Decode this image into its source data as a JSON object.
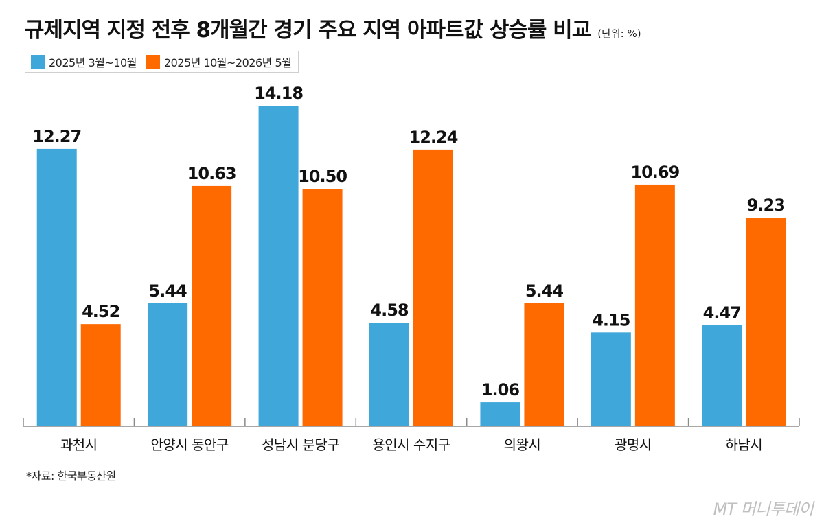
{
  "header": {
    "title": "규제지역 지정 전후 8개월간 경기 주요 지역 아파트값 상승률 비교",
    "unit": "(단위: %)"
  },
  "source": "*자료: 한국부동산원",
  "watermark": "MT 머니투데이",
  "colors": {
    "series1": "#3fa7d9",
    "series2": "#ff6a00",
    "axis": "#8a8a8a"
  },
  "chart_data": {
    "type": "bar",
    "title": "규제지역 지정 전후 8개월간 경기 주요 지역 아파트값 상승률 비교",
    "unit": "(단위: %)",
    "categories": [
      "과천시",
      "안양시 동안구",
      "성남시 분당구",
      "용인시 수지구",
      "의왕시",
      "광명시",
      "하남시"
    ],
    "series": [
      {
        "name": "2025년 3월~10월",
        "values": [
          12.27,
          5.44,
          14.18,
          4.58,
          1.06,
          4.15,
          4.47
        ]
      },
      {
        "name": "2025년 10월~2026년 5월",
        "values": [
          4.52,
          10.63,
          10.5,
          12.24,
          5.44,
          10.69,
          9.23
        ]
      }
    ],
    "ylim": [
      0,
      16
    ],
    "grid": false,
    "legend": "top-left"
  }
}
